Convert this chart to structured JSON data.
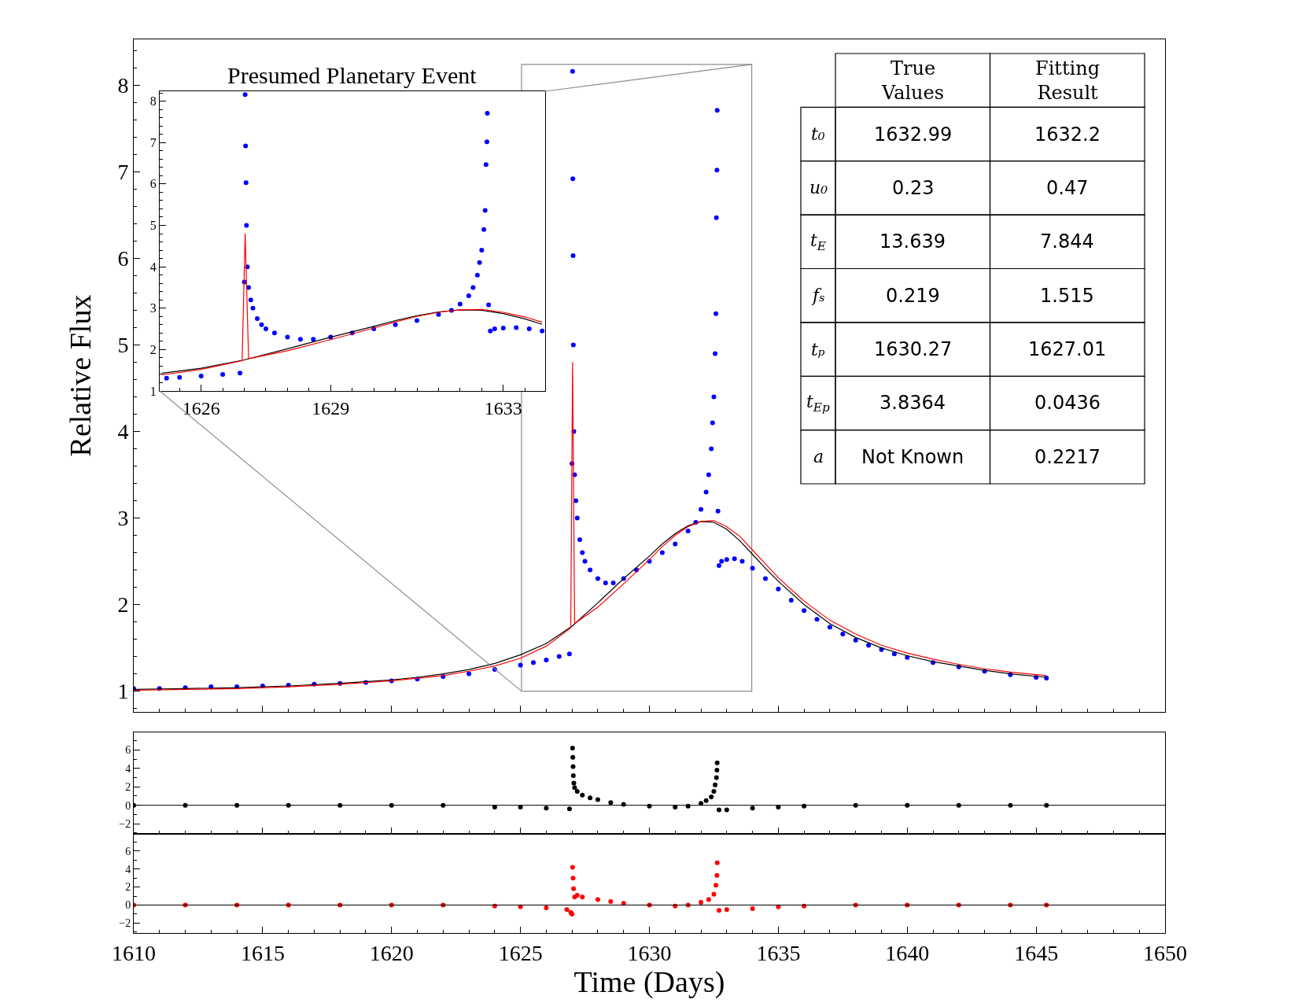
{
  "chart_data": [
    {
      "type": "scatter",
      "ylabel": "Relative Flux",
      "xlim": [
        1610,
        1650
      ],
      "xticks": [
        1610,
        1615,
        1620,
        1625,
        1630,
        1635,
        1640,
        1645,
        1650
      ],
      "ylim": [
        0.76,
        8.53
      ],
      "yticks": [
        1,
        2,
        3,
        4,
        5,
        6,
        7,
        8
      ],
      "tick_labels": "y",
      "series": [
        {
          "type": "scatter",
          "marker": "circle",
          "color": "#0000ff",
          "x": [
            1610,
            1611,
            1612,
            1613,
            1614,
            1615,
            1616,
            1617,
            1618,
            1619,
            1620,
            1621,
            1622,
            1623,
            1624,
            1625,
            1625.5,
            1626,
            1626.5,
            1626.9,
            1627.0,
            1627.02,
            1627.03,
            1627.04,
            1627.05,
            1627.07,
            1627.1,
            1627.15,
            1627.2,
            1627.3,
            1627.4,
            1627.5,
            1627.7,
            1628,
            1628.3,
            1628.6,
            1629,
            1629.5,
            1630,
            1630.5,
            1631,
            1631.5,
            1631.8,
            1632,
            1632.2,
            1632.3,
            1632.4,
            1632.45,
            1632.5,
            1632.55,
            1632.58,
            1632.6,
            1632.62,
            1632.63,
            1632.66,
            1632.7,
            1632.8,
            1633,
            1633.3,
            1633.6,
            1634,
            1634.5,
            1635,
            1635.5,
            1636,
            1636.5,
            1637,
            1637.5,
            1638,
            1638.5,
            1639,
            1639.5,
            1640,
            1641,
            1642,
            1643,
            1644,
            1645,
            1645.4
          ],
          "values": [
            1.03,
            1.03,
            1.04,
            1.05,
            1.05,
            1.06,
            1.07,
            1.08,
            1.09,
            1.1,
            1.12,
            1.14,
            1.17,
            1.2,
            1.25,
            1.3,
            1.33,
            1.36,
            1.4,
            1.43,
            3.63,
            8.16,
            6.92,
            6.03,
            5.0,
            4.0,
            3.5,
            3.2,
            3.0,
            2.75,
            2.6,
            2.5,
            2.4,
            2.3,
            2.25,
            2.25,
            2.3,
            2.4,
            2.5,
            2.6,
            2.7,
            2.85,
            2.95,
            3.1,
            3.3,
            3.5,
            3.8,
            4.1,
            4.4,
            4.9,
            5.36,
            6.47,
            7.02,
            7.71,
            3.08,
            2.45,
            2.5,
            2.52,
            2.53,
            2.5,
            2.42,
            2.3,
            2.18,
            2.05,
            1.93,
            1.83,
            1.74,
            1.66,
            1.59,
            1.53,
            1.48,
            1.43,
            1.39,
            1.33,
            1.28,
            1.23,
            1.19,
            1.16,
            1.15
          ]
        },
        {
          "type": "line",
          "marker": "none",
          "color": "#000000",
          "x": [
            1610,
            1612,
            1614,
            1616,
            1618,
            1620,
            1621,
            1622,
            1623,
            1624,
            1625,
            1626,
            1627,
            1628,
            1629,
            1630,
            1630.5,
            1631,
            1631.5,
            1632,
            1632.5,
            1633,
            1633.5,
            1634,
            1634.5,
            1635,
            1636,
            1637,
            1638,
            1639,
            1640,
            1641,
            1642,
            1643,
            1644,
            1645.4
          ],
          "values": [
            1.02,
            1.03,
            1.04,
            1.06,
            1.09,
            1.13,
            1.16,
            1.2,
            1.25,
            1.32,
            1.42,
            1.55,
            1.75,
            2.02,
            2.3,
            2.56,
            2.7,
            2.82,
            2.91,
            2.96,
            2.95,
            2.87,
            2.74,
            2.58,
            2.42,
            2.27,
            2.0,
            1.78,
            1.62,
            1.5,
            1.41,
            1.34,
            1.29,
            1.24,
            1.2,
            1.16
          ]
        },
        {
          "type": "line",
          "marker": "none",
          "color": "#ff0000",
          "x": [
            1610,
            1612,
            1614,
            1616,
            1618,
            1620,
            1621,
            1622,
            1623,
            1624,
            1625,
            1626,
            1626.95,
            1627.02,
            1627.1,
            1628,
            1629,
            1630,
            1630.5,
            1631,
            1631.5,
            1632,
            1632.5,
            1633,
            1633.5,
            1634,
            1634.5,
            1635,
            1636,
            1637,
            1638,
            1639,
            1640,
            1641,
            1642,
            1643,
            1644,
            1645.4
          ],
          "values": [
            1.01,
            1.02,
            1.03,
            1.05,
            1.08,
            1.12,
            1.15,
            1.18,
            1.23,
            1.29,
            1.38,
            1.52,
            1.73,
            4.8,
            1.78,
            1.97,
            2.24,
            2.52,
            2.67,
            2.8,
            2.9,
            2.96,
            2.97,
            2.9,
            2.79,
            2.63,
            2.47,
            2.31,
            2.04,
            1.82,
            1.66,
            1.53,
            1.44,
            1.37,
            1.31,
            1.26,
            1.22,
            1.18
          ]
        }
      ]
    },
    {
      "type": "scatter",
      "title": "Presumed Planetary Event",
      "xlim": [
        1625.04,
        1633.97
      ],
      "xticks": [
        1626,
        1629,
        1633
      ],
      "ylim": [
        1,
        8.24
      ],
      "yticks": [
        1,
        2,
        3,
        4,
        5,
        6,
        7,
        8
      ],
      "series": [
        {
          "type": "scatter",
          "marker": "circle",
          "color": "#0000ff",
          "x": [
            1625.2,
            1625.5,
            1626,
            1626.5,
            1626.9,
            1627.0,
            1627.02,
            1627.03,
            1627.04,
            1627.05,
            1627.07,
            1627.1,
            1627.15,
            1627.2,
            1627.3,
            1627.4,
            1627.5,
            1627.7,
            1628,
            1628.3,
            1628.6,
            1629,
            1629.5,
            1630,
            1630.5,
            1631,
            1631.5,
            1631.8,
            1632,
            1632.2,
            1632.3,
            1632.4,
            1632.45,
            1632.5,
            1632.55,
            1632.58,
            1632.6,
            1632.62,
            1632.63,
            1632.66,
            1632.7,
            1632.8,
            1633,
            1633.3,
            1633.6,
            1633.9
          ],
          "values": [
            1.31,
            1.33,
            1.36,
            1.4,
            1.43,
            3.63,
            8.16,
            6.92,
            6.03,
            5.0,
            4.0,
            3.5,
            3.2,
            3.0,
            2.75,
            2.6,
            2.5,
            2.4,
            2.3,
            2.25,
            2.25,
            2.3,
            2.4,
            2.5,
            2.6,
            2.7,
            2.85,
            2.95,
            3.1,
            3.3,
            3.5,
            3.8,
            4.1,
            4.4,
            4.9,
            5.36,
            6.47,
            7.02,
            7.71,
            3.08,
            2.45,
            2.5,
            2.52,
            2.53,
            2.5,
            2.45
          ]
        },
        {
          "type": "line",
          "marker": "none",
          "color": "#000000",
          "x": [
            1625.1,
            1626,
            1627,
            1628,
            1629,
            1630,
            1630.5,
            1631,
            1631.5,
            1632,
            1632.5,
            1633,
            1633.5,
            1633.9
          ],
          "values": [
            1.43,
            1.55,
            1.75,
            2.02,
            2.3,
            2.56,
            2.7,
            2.82,
            2.91,
            2.96,
            2.95,
            2.87,
            2.74,
            2.61
          ]
        },
        {
          "type": "line",
          "marker": "none",
          "color": "#ff0000",
          "x": [
            1625.1,
            1626,
            1626.95,
            1627.02,
            1627.1,
            1628,
            1629,
            1630,
            1630.5,
            1631,
            1631.5,
            1632,
            1632.5,
            1633,
            1633.5,
            1633.9
          ],
          "values": [
            1.39,
            1.52,
            1.73,
            4.8,
            1.78,
            1.97,
            2.24,
            2.52,
            2.67,
            2.8,
            2.9,
            2.96,
            2.97,
            2.9,
            2.79,
            2.66
          ]
        }
      ]
    },
    {
      "type": "other",
      "categories": [
        "True Values",
        "Fitting Result"
      ],
      "y_categories": [
        "t₀",
        "u₀",
        "t$_{E}$",
        "fₛ",
        "tₚ",
        "t$_{Ep}$",
        "a"
      ],
      "cell_labels": [
        [
          "1632.99",
          "1632.2"
        ],
        [
          "0.23",
          "0.47"
        ],
        [
          "13.639",
          "7.844"
        ],
        [
          "0.219",
          "1.515"
        ],
        [
          "1630.27",
          "1627.01"
        ],
        [
          "3.8364",
          "0.0436"
        ],
        [
          "Not Known",
          "0.2217"
        ]
      ]
    },
    {
      "type": "scatter",
      "xlim": [
        1610,
        1650
      ],
      "xticks": [
        1610,
        1615,
        1620,
        1625,
        1630,
        1635,
        1640,
        1645,
        1650
      ],
      "ylim": [
        -3.1,
        7.9
      ],
      "yticks": [
        -2,
        0,
        2,
        4,
        6
      ],
      "tick_labels": "y",
      "ref_lines": [
        {
          "axis": "y",
          "value": 0,
          "color": "#000000"
        }
      ],
      "series": [
        {
          "type": "scatter",
          "marker": "circle",
          "color": "#000000",
          "x": [
            1610,
            1612,
            1614,
            1616,
            1618,
            1620,
            1622,
            1624,
            1625,
            1626,
            1626.9,
            1627.02,
            1627.03,
            1627.04,
            1627.05,
            1627.07,
            1627.1,
            1627.2,
            1627.4,
            1627.7,
            1628,
            1628.5,
            1629,
            1630,
            1631,
            1631.5,
            1632,
            1632.2,
            1632.4,
            1632.5,
            1632.55,
            1632.6,
            1632.62,
            1632.63,
            1632.7,
            1633,
            1634,
            1635,
            1636,
            1638,
            1640,
            1642,
            1644,
            1645.4
          ],
          "values": [
            0,
            0,
            0,
            0,
            0,
            0,
            0,
            -0.2,
            -0.2,
            -0.3,
            -0.4,
            6.2,
            5.2,
            4.2,
            3.2,
            2.4,
            1.9,
            1.5,
            1.1,
            0.8,
            0.6,
            0.3,
            0.1,
            -0.1,
            -0.2,
            -0.1,
            0.2,
            0.5,
            0.9,
            1.5,
            2.2,
            3.0,
            3.8,
            4.6,
            -0.5,
            -0.5,
            -0.3,
            -0.2,
            -0.1,
            0,
            0,
            0,
            0,
            0
          ]
        }
      ]
    },
    {
      "type": "scatter",
      "xlabel": "Time (Days)",
      "xlim": [
        1610,
        1650
      ],
      "xticks": [
        1610,
        1615,
        1620,
        1625,
        1630,
        1635,
        1640,
        1645,
        1650
      ],
      "ylim": [
        -3.1,
        7.9
      ],
      "yticks": [
        -2,
        0,
        2,
        4,
        6
      ],
      "ref_lines": [
        {
          "axis": "y",
          "value": 0,
          "color": "#000000"
        }
      ],
      "series": [
        {
          "type": "scatter",
          "marker": "circle",
          "color": "#ff0000",
          "x": [
            1610,
            1612,
            1614,
            1616,
            1618,
            1620,
            1622,
            1624,
            1625,
            1626,
            1626.8,
            1626.95,
            1627.0,
            1627.02,
            1627.04,
            1627.06,
            1627.1,
            1627.2,
            1627.4,
            1628,
            1628.5,
            1629,
            1630,
            1631,
            1631.5,
            1632,
            1632.3,
            1632.5,
            1632.58,
            1632.62,
            1632.63,
            1632.7,
            1633,
            1634,
            1635,
            1636,
            1638,
            1640,
            1642,
            1644,
            1645.4
          ],
          "values": [
            0,
            0,
            0,
            0,
            0,
            0,
            0,
            -0.1,
            -0.2,
            -0.3,
            -0.5,
            -0.8,
            -1.0,
            4.2,
            3.0,
            1.8,
            0.9,
            1.1,
            0.9,
            0.6,
            0.4,
            0.2,
            0,
            -0.1,
            0,
            0.3,
            0.6,
            1.2,
            2.2,
            3.3,
            4.7,
            -0.6,
            -0.5,
            -0.4,
            -0.2,
            -0.1,
            0,
            0,
            0,
            0,
            0
          ]
        }
      ]
    }
  ]
}
